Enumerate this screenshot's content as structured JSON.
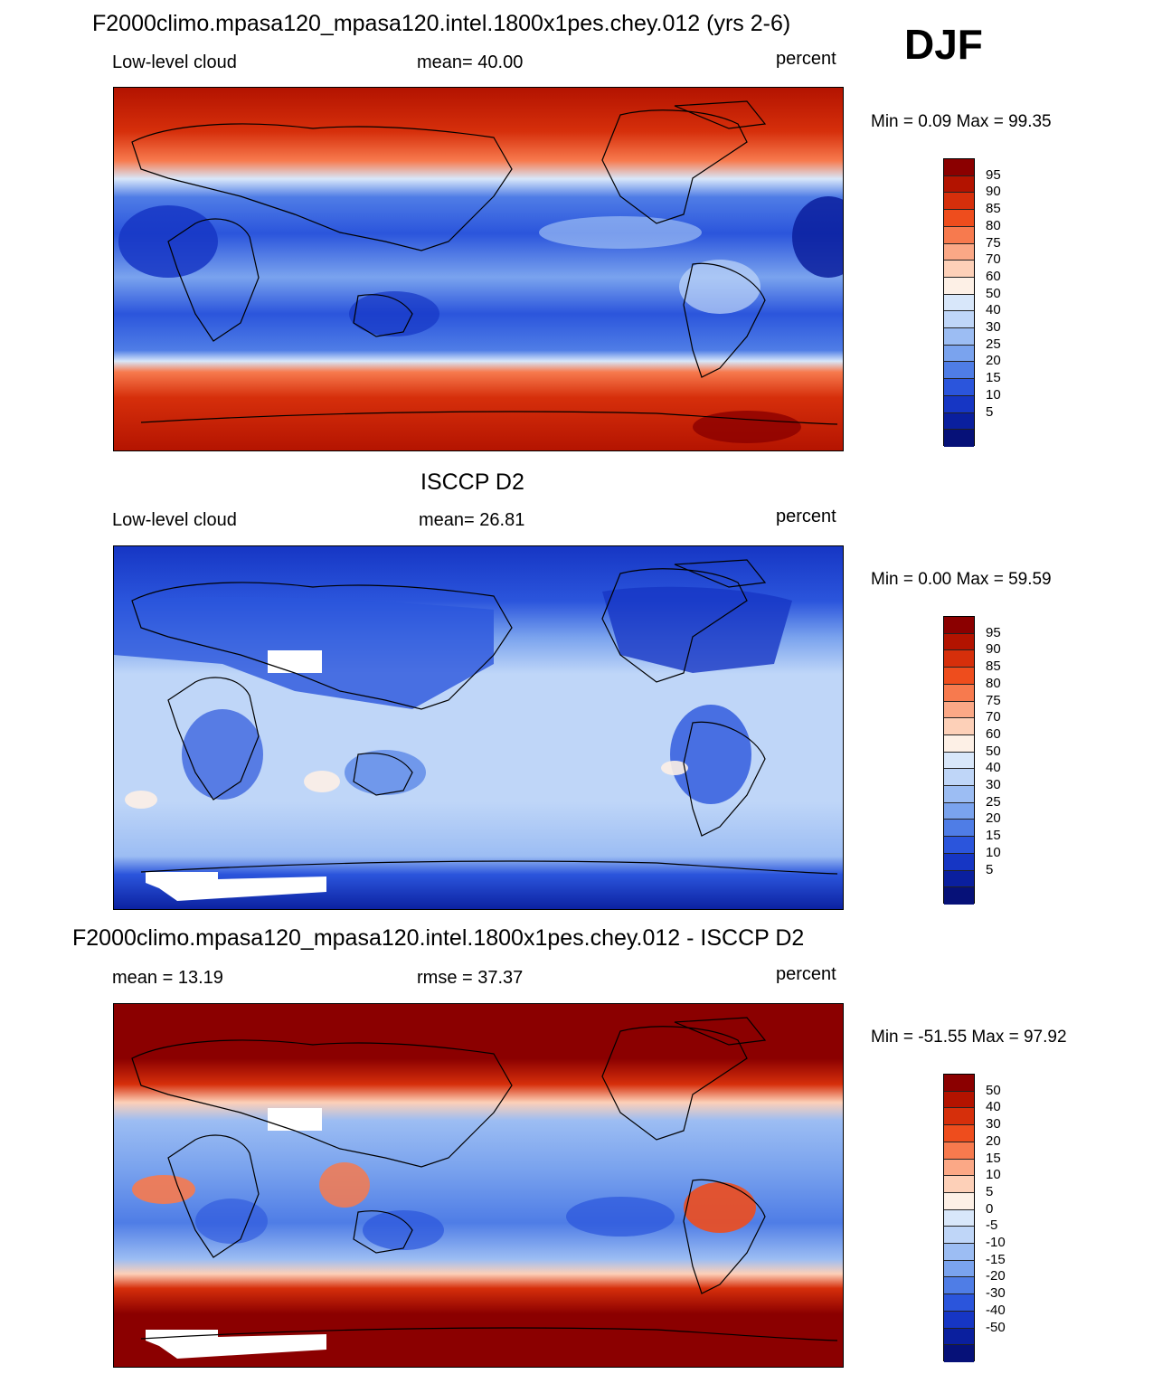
{
  "season": "DJF",
  "colors": {
    "model_scale": [
      "#8b0000",
      "#b31300",
      "#d62f0b",
      "#ee4d1d",
      "#f77a4e",
      "#fba886",
      "#fdd0b8",
      "#fdf0e6",
      "#d8e7fa",
      "#bfd6f8",
      "#9cbdf3",
      "#7aa3ee",
      "#4f7de6",
      "#2b55dc",
      "#1636c4",
      "#0a1f9e",
      "#061178"
    ],
    "diff_scale": [
      "#8b0000",
      "#b31300",
      "#d62f0b",
      "#ee4d1d",
      "#f77a4e",
      "#fba886",
      "#fdd0b8",
      "#fdf0e6",
      "#d8e7fa",
      "#bfd6f8",
      "#9cbdf3",
      "#7aa3ee",
      "#4f7de6",
      "#2b55dc",
      "#1636c4",
      "#0a1f9e",
      "#061178"
    ]
  },
  "panels": [
    {
      "title": "F2000climo.mpasa120_mpasa120.intel.1800x1pes.chey.012 (yrs 2-6)",
      "left_label": "Low-level cloud",
      "center_label": "mean=  40.00",
      "units": "percent",
      "minmax": "Min =   0.09 Max =  99.35",
      "colorbar_labels": [
        "95",
        "90",
        "85",
        "80",
        "75",
        "70",
        "60",
        "50",
        "40",
        "30",
        "25",
        "20",
        "15",
        "10",
        "5"
      ]
    },
    {
      "title": "ISCCP D2",
      "left_label": "Low-level cloud",
      "center_label": "mean=  26.81",
      "units": "percent",
      "minmax": "Min =   0.00 Max =  59.59",
      "colorbar_labels": [
        "95",
        "90",
        "85",
        "80",
        "75",
        "70",
        "60",
        "50",
        "40",
        "30",
        "25",
        "20",
        "15",
        "10",
        "5"
      ]
    },
    {
      "title": "F2000climo.mpasa120_mpasa120.intel.1800x1pes.chey.012 - ISCCP D2",
      "left_label": "mean =  13.19",
      "center_label": "rmse =  37.37",
      "units": "percent",
      "minmax": "Min = -51.55 Max =  97.92",
      "colorbar_labels": [
        "50",
        "40",
        "30",
        "20",
        "15",
        "10",
        "5",
        "0",
        "-5",
        "-10",
        "-15",
        "-20",
        "-30",
        "-40",
        "-50"
      ]
    }
  ]
}
